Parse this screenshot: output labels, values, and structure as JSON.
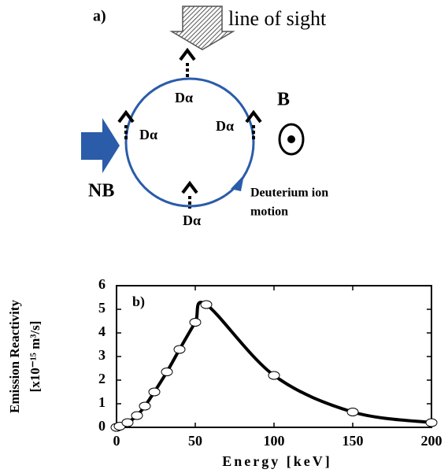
{
  "diagram": {
    "panel_label": "a)",
    "line_of_sight": "line of sight",
    "field": "B",
    "beam": "NB",
    "emission_labels": [
      "Dα",
      "Dα",
      "Dα",
      "Dα"
    ],
    "motion_lines": [
      "Deuterium ion",
      "motion"
    ]
  },
  "chart_data": {
    "type": "line",
    "annotation": "b)",
    "xlabel": "Energy [keV]",
    "ylabel": [
      "Emission Reactivity",
      "[x10⁻¹⁵ m³/s]"
    ],
    "x": [
      0,
      2,
      7,
      13,
      18,
      24,
      32,
      40,
      50,
      57,
      100,
      150,
      200
    ],
    "series": [
      {
        "color": "#000000",
        "values": [
          0,
          0.05,
          0.2,
          0.5,
          0.9,
          1.5,
          2.35,
          3.3,
          4.45,
          5.2,
          2.2,
          0.65,
          0.2
        ]
      }
    ],
    "xlim": [
      0,
      200
    ],
    "xticks": [
      0,
      50,
      100,
      150,
      200
    ],
    "ylim": [
      0,
      6
    ],
    "yticks": [
      0,
      1,
      2,
      3,
      4,
      5,
      6
    ]
  }
}
